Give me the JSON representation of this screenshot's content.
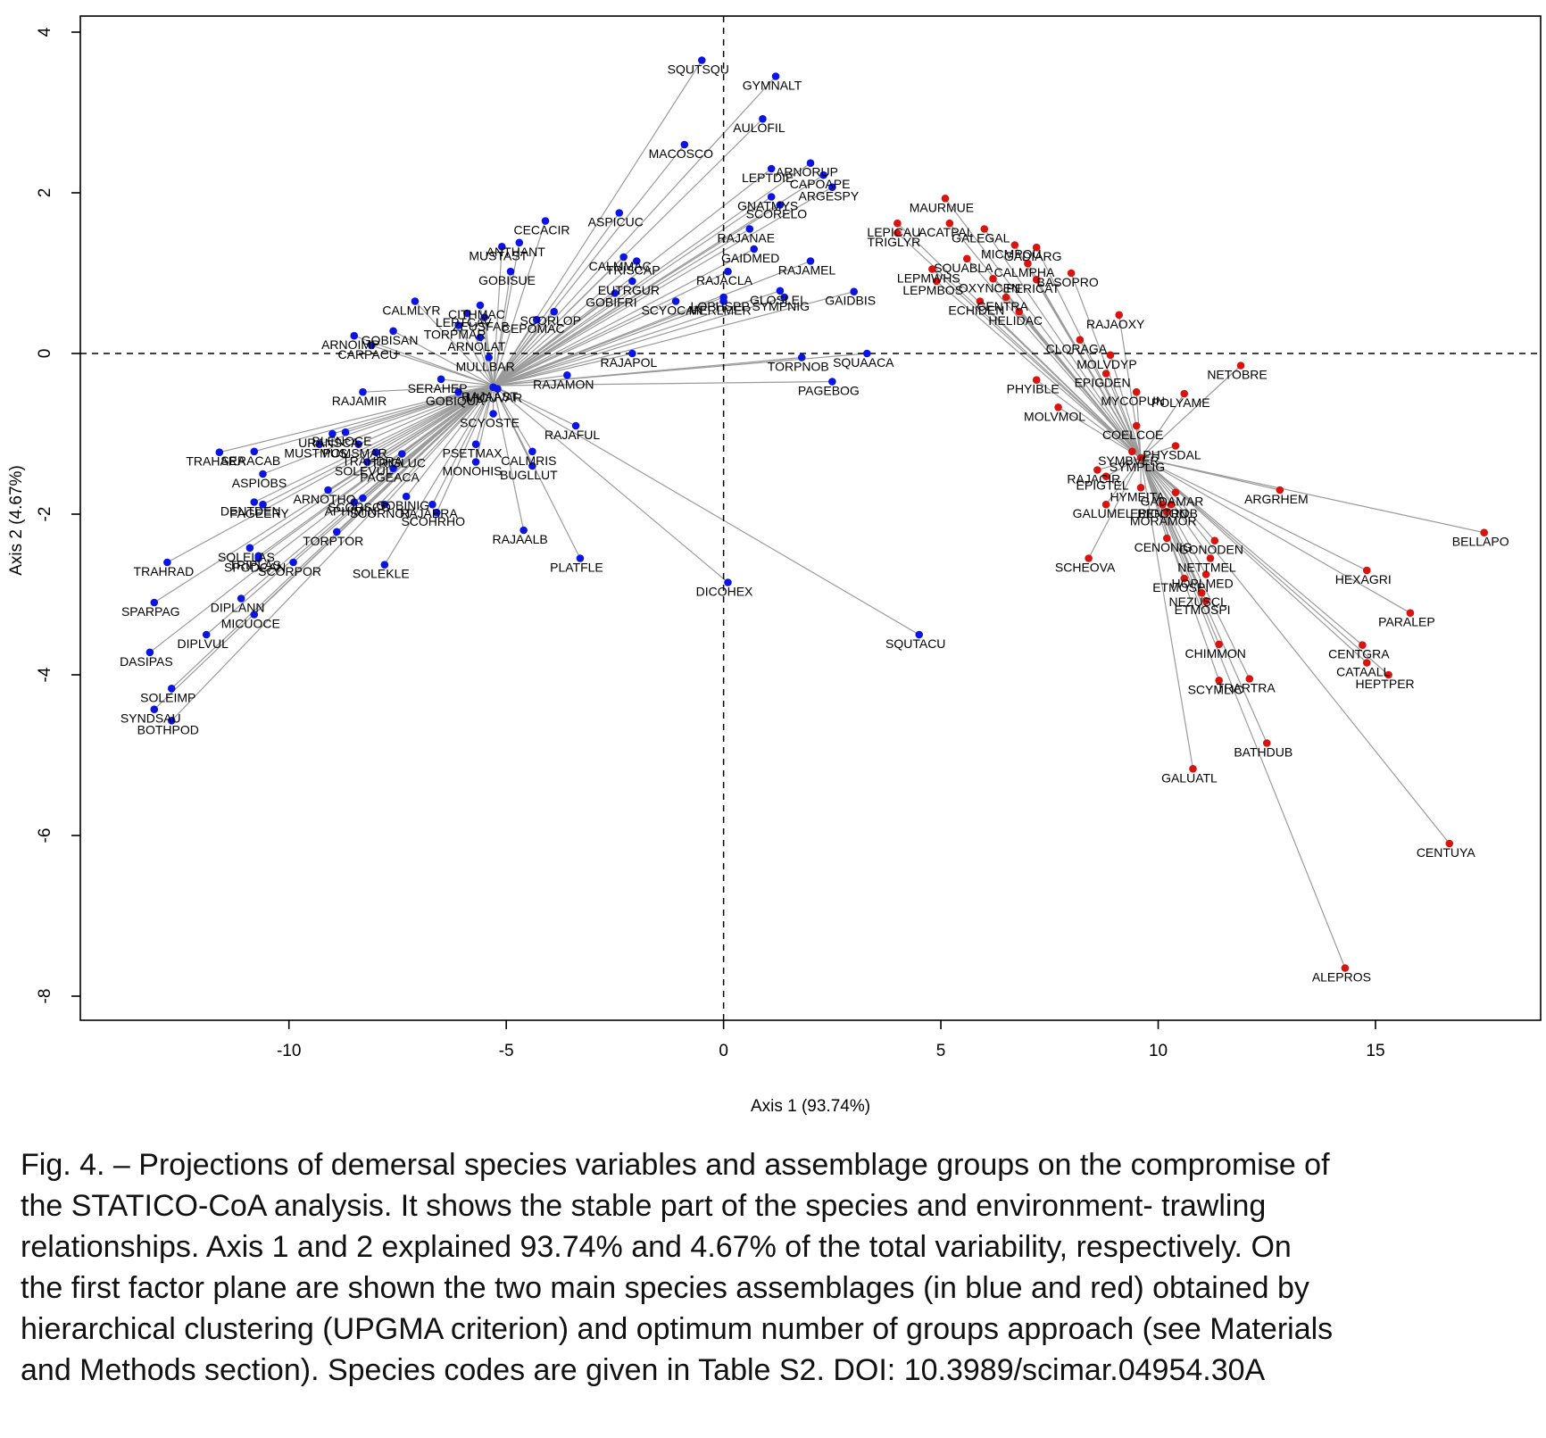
{
  "chart_data": {
    "type": "scatter",
    "xlabel": "Axis 1 (93.74%)",
    "ylabel": "Axis 2 (4.67%)",
    "xlim": [
      -14.8,
      18.8
    ],
    "ylim": [
      -8.3,
      4.2
    ],
    "xticks": [
      -10,
      -5,
      0,
      5,
      10,
      15
    ],
    "yticks": [
      4,
      2,
      0,
      -2,
      -4,
      -6,
      -8
    ],
    "reference_lines": {
      "x": 0,
      "y": 0,
      "style": "dashed"
    },
    "grid": false,
    "colors": {
      "blue": "#0a14e6",
      "red": "#d9140f"
    },
    "centroids": {
      "blue": [
        -5.3,
        -0.4
      ],
      "red": [
        9.6,
        -1.3
      ]
    },
    "series": [
      {
        "color": "blue",
        "points": [
          {
            "label": "SQUTSQU",
            "x": -0.5,
            "y": 3.65
          },
          {
            "label": "GYMNALT",
            "x": 1.2,
            "y": 3.45
          },
          {
            "label": "AULOFIL",
            "x": 0.9,
            "y": 2.92
          },
          {
            "label": "MACOSCO",
            "x": -0.9,
            "y": 2.6
          },
          {
            "label": "LEPTDIE",
            "x": 1.1,
            "y": 2.3
          },
          {
            "label": "ARNORUP",
            "x": 2.0,
            "y": 2.37
          },
          {
            "label": "CAPOAPE",
            "x": 2.3,
            "y": 2.22
          },
          {
            "label": "ARGESPY",
            "x": 2.5,
            "y": 2.07
          },
          {
            "label": "GNATMYS",
            "x": 1.1,
            "y": 1.95
          },
          {
            "label": "SCORELO",
            "x": 1.3,
            "y": 1.85
          },
          {
            "label": "ASPICUC",
            "x": -2.4,
            "y": 1.75
          },
          {
            "label": "CECACIR",
            "x": -4.1,
            "y": 1.65
          },
          {
            "label": "RAJANAE",
            "x": 0.6,
            "y": 1.55
          },
          {
            "label": "GAIDMED",
            "x": 0.7,
            "y": 1.3
          },
          {
            "label": "CALMMAC",
            "x": -2.3,
            "y": 1.2
          },
          {
            "label": "ANTHANT",
            "x": -4.7,
            "y": 1.38
          },
          {
            "label": "MUSTAST",
            "x": -5.1,
            "y": 1.33
          },
          {
            "label": "RAJAMEL",
            "x": 2.0,
            "y": 1.15
          },
          {
            "label": "TRISCAP",
            "x": -2.0,
            "y": 1.15
          },
          {
            "label": "GOBISUE",
            "x": -4.9,
            "y": 1.02
          },
          {
            "label": "RAJACLA",
            "x": 0.1,
            "y": 1.02
          },
          {
            "label": "EUTRGUR",
            "x": -2.1,
            "y": 0.9
          },
          {
            "label": "GLOSLEI",
            "x": 1.3,
            "y": 0.78
          },
          {
            "label": "GAIDBIS",
            "x": 3.0,
            "y": 0.77
          },
          {
            "label": "GOBIFRI",
            "x": -2.5,
            "y": 0.75
          },
          {
            "label": "CALMLYR",
            "x": -7.1,
            "y": 0.65
          },
          {
            "label": "CITHMAC",
            "x": -5.6,
            "y": 0.6
          },
          {
            "label": "SCYOCAN",
            "x": -1.1,
            "y": 0.65
          },
          {
            "label": "MERLMER",
            "x": 0.0,
            "y": 0.65
          },
          {
            "label": "LOPHSPP",
            "x": 0.0,
            "y": 0.7
          },
          {
            "label": "SYMPNIG",
            "x": 1.4,
            "y": 0.7
          },
          {
            "label": "LEPTCAV",
            "x": -5.9,
            "y": 0.5
          },
          {
            "label": "ZEUSFAB",
            "x": -5.5,
            "y": 0.45
          },
          {
            "label": "CEPOMAC",
            "x": -4.3,
            "y": 0.42
          },
          {
            "label": "SCORLOP",
            "x": -3.9,
            "y": 0.52
          },
          {
            "label": "GOBISAN",
            "x": -7.6,
            "y": 0.28
          },
          {
            "label": "ARNOIMP",
            "x": -8.5,
            "y": 0.22
          },
          {
            "label": "TORPMAR",
            "x": -6.1,
            "y": 0.35
          },
          {
            "label": "ARNOLAT",
            "x": -5.6,
            "y": 0.2
          },
          {
            "label": "CARPACU",
            "x": -8.1,
            "y": 0.1
          },
          {
            "label": "MULLBAR",
            "x": -5.4,
            "y": -0.05
          },
          {
            "label": "RAJAPOL",
            "x": -2.1,
            "y": 0.0
          },
          {
            "label": "SQUAACA",
            "x": 3.3,
            "y": 0.0
          },
          {
            "label": "TORPNOB",
            "x": 1.8,
            "y": -0.05
          },
          {
            "label": "SERAHEP",
            "x": -6.5,
            "y": -0.32
          },
          {
            "label": "RAJAAST",
            "x": -5.3,
            "y": -0.42
          },
          {
            "label": "MICUVAR",
            "x": -5.2,
            "y": -0.44
          },
          {
            "label": "RAJAMON",
            "x": -3.6,
            "y": -0.27
          },
          {
            "label": "PAGEBOG",
            "x": 2.5,
            "y": -0.35
          },
          {
            "label": "RAJAMIR",
            "x": -8.3,
            "y": -0.48
          },
          {
            "label": "GOBIQUA",
            "x": -6.1,
            "y": -0.48
          },
          {
            "label": "SCYOSTE",
            "x": -5.3,
            "y": -0.75
          },
          {
            "label": "RAJAFUL",
            "x": -3.4,
            "y": -0.9
          },
          {
            "label": "URANSCA",
            "x": -9.0,
            "y": -1.0
          },
          {
            "label": "BLENOCE",
            "x": -8.7,
            "y": -0.98
          },
          {
            "label": "MUSTMUS",
            "x": -9.3,
            "y": -1.13
          },
          {
            "label": "POMSMAR",
            "x": -8.4,
            "y": -1.13
          },
          {
            "label": "TRAHARA",
            "x": -11.6,
            "y": -1.23
          },
          {
            "label": "TRAHDRA",
            "x": -8.0,
            "y": -1.23
          },
          {
            "label": "SERACAB",
            "x": -10.8,
            "y": -1.22
          },
          {
            "label": "PSETMAX",
            "x": -5.7,
            "y": -1.13
          },
          {
            "label": "CALMRIS",
            "x": -4.4,
            "y": -1.22
          },
          {
            "label": "TRIGLUC",
            "x": -7.4,
            "y": -1.25
          },
          {
            "label": "SOLEVUL",
            "x": -8.2,
            "y": -1.35
          },
          {
            "label": "PAGEACA",
            "x": -7.6,
            "y": -1.43
          },
          {
            "label": "BUGLLUT",
            "x": -4.4,
            "y": -1.4
          },
          {
            "label": "MONOHIS",
            "x": -5.7,
            "y": -1.35
          },
          {
            "label": "ASPIOBS",
            "x": -10.6,
            "y": -1.5
          },
          {
            "label": "ARNOTHO",
            "x": -9.1,
            "y": -1.7
          },
          {
            "label": "SCORSCO",
            "x": -8.3,
            "y": -1.8
          },
          {
            "label": "DENTDEN",
            "x": -10.8,
            "y": -1.85
          },
          {
            "label": "GOBINIG",
            "x": -7.3,
            "y": -1.78
          },
          {
            "label": "PAGEERY",
            "x": -10.6,
            "y": -1.88
          },
          {
            "label": "RAJABRA",
            "x": -6.7,
            "y": -1.88
          },
          {
            "label": "SCORNOT",
            "x": -7.8,
            "y": -1.88
          },
          {
            "label": "APHIMIN",
            "x": -8.5,
            "y": -1.85
          },
          {
            "label": "SCOHRHO",
            "x": -6.6,
            "y": -1.98
          },
          {
            "label": "TORPTOR",
            "x": -8.9,
            "y": -2.22
          },
          {
            "label": "RAJAALB",
            "x": -4.6,
            "y": -2.2
          },
          {
            "label": "TRIPLAS",
            "x": -10.7,
            "y": -2.52
          },
          {
            "label": "SOLELAS",
            "x": -10.9,
            "y": -2.42
          },
          {
            "label": "TRAHRAD",
            "x": -12.8,
            "y": -2.6
          },
          {
            "label": "SPODCAN",
            "x": -10.7,
            "y": -2.55
          },
          {
            "label": "SCORPOR",
            "x": -9.9,
            "y": -2.6
          },
          {
            "label": "SOLEKLE",
            "x": -7.8,
            "y": -2.63
          },
          {
            "label": "PLATFLE",
            "x": -3.3,
            "y": -2.55
          },
          {
            "label": "DICOHEX",
            "x": 0.1,
            "y": -2.85
          },
          {
            "label": "DIPLANN",
            "x": -11.1,
            "y": -3.05
          },
          {
            "label": "SPARPAG",
            "x": -13.1,
            "y": -3.1
          },
          {
            "label": "MICUOCE",
            "x": -10.8,
            "y": -3.25
          },
          {
            "label": "DIPLVUL",
            "x": -11.9,
            "y": -3.5
          },
          {
            "label": "SQUTACU",
            "x": 4.5,
            "y": -3.5
          },
          {
            "label": "DASIPAS",
            "x": -13.2,
            "y": -3.72
          },
          {
            "label": "SOLEIMP",
            "x": -12.7,
            "y": -4.17
          },
          {
            "label": "SYNDSAU",
            "x": -13.1,
            "y": -4.43
          },
          {
            "label": "BOTHPOD",
            "x": -12.7,
            "y": -4.57
          }
        ]
      },
      {
        "color": "red",
        "points": [
          {
            "label": "MAURMUE",
            "x": 5.1,
            "y": 1.93
          },
          {
            "label": "ACATPAL",
            "x": 5.2,
            "y": 1.62
          },
          {
            "label": "LEPICAU",
            "x": 4.0,
            "y": 1.62
          },
          {
            "label": "TRIGLYR",
            "x": 4.0,
            "y": 1.5
          },
          {
            "label": "GALEGAL",
            "x": 6.0,
            "y": 1.55
          },
          {
            "label": "MICMPOU",
            "x": 6.7,
            "y": 1.35
          },
          {
            "label": "GADIARG",
            "x": 7.2,
            "y": 1.32
          },
          {
            "label": "CALMPHA",
            "x": 7.0,
            "y": 1.12
          },
          {
            "label": "SQUABLA",
            "x": 5.6,
            "y": 1.18
          },
          {
            "label": "BASOPRO",
            "x": 8.0,
            "y": 1.0
          },
          {
            "label": "LEPMWHS",
            "x": 4.8,
            "y": 1.05
          },
          {
            "label": "PERICAT",
            "x": 7.2,
            "y": 0.92
          },
          {
            "label": "LEPMBOS",
            "x": 4.9,
            "y": 0.9
          },
          {
            "label": "OXYNCEN",
            "x": 6.2,
            "y": 0.93
          },
          {
            "label": "CENTRA",
            "x": 6.5,
            "y": 0.7
          },
          {
            "label": "ECHIDEN",
            "x": 5.9,
            "y": 0.65
          },
          {
            "label": "HELIDAC",
            "x": 6.8,
            "y": 0.52
          },
          {
            "label": "RAJAOXY",
            "x": 9.1,
            "y": 0.48
          },
          {
            "label": "CLORAGA",
            "x": 8.2,
            "y": 0.17
          },
          {
            "label": "MOLVDYP",
            "x": 8.9,
            "y": -0.02
          },
          {
            "label": "NETOBRE",
            "x": 11.9,
            "y": -0.15
          },
          {
            "label": "POLYAME",
            "x": 10.6,
            "y": -0.5
          },
          {
            "label": "EPIGDEN",
            "x": 8.8,
            "y": -0.25
          },
          {
            "label": "PHYIBLE",
            "x": 7.2,
            "y": -0.33
          },
          {
            "label": "MYCOPUN",
            "x": 9.5,
            "y": -0.48
          },
          {
            "label": "MOLVMOL",
            "x": 7.7,
            "y": -0.67
          },
          {
            "label": "COELCOE",
            "x": 9.5,
            "y": -0.9
          },
          {
            "label": "SYMBVER",
            "x": 9.4,
            "y": -1.22
          },
          {
            "label": "PHYSDAL",
            "x": 10.4,
            "y": -1.15
          },
          {
            "label": "SYMPLIG",
            "x": 9.6,
            "y": -1.3
          },
          {
            "label": "RAJACIR",
            "x": 8.6,
            "y": -1.45
          },
          {
            "label": "EPIGTEL",
            "x": 8.8,
            "y": -1.53
          },
          {
            "label": "ARGRHEM",
            "x": 12.8,
            "y": -1.7
          },
          {
            "label": "HYMEITA",
            "x": 9.6,
            "y": -1.67
          },
          {
            "label": "GADAMAR",
            "x": 10.4,
            "y": -1.73
          },
          {
            "label": "BENTROB",
            "x": 10.3,
            "y": -1.88
          },
          {
            "label": "EPIGCON",
            "x": 10.1,
            "y": -1.88
          },
          {
            "label": "GALUMEL",
            "x": 8.8,
            "y": -1.88
          },
          {
            "label": "BELLAPO",
            "x": 17.5,
            "y": -2.23
          },
          {
            "label": "MORAMOR",
            "x": 10.2,
            "y": -1.97
          },
          {
            "label": "GONODEN",
            "x": 11.3,
            "y": -2.33
          },
          {
            "label": "CENONIG",
            "x": 10.2,
            "y": -2.3
          },
          {
            "label": "SCHEOVA",
            "x": 8.4,
            "y": -2.55
          },
          {
            "label": "NETTMEL",
            "x": 11.2,
            "y": -2.55
          },
          {
            "label": "HOPLMED",
            "x": 11.1,
            "y": -2.75
          },
          {
            "label": "HEXAGRI",
            "x": 14.8,
            "y": -2.7
          },
          {
            "label": "ETMOSPI",
            "x": 10.6,
            "y": -2.8
          },
          {
            "label": "NEZUSCL",
            "x": 11.0,
            "y": -2.98
          },
          {
            "label": "ETMOSPI",
            "x": 11.1,
            "y": -3.08
          },
          {
            "label": "PARALEP",
            "x": 15.8,
            "y": -3.23
          },
          {
            "label": "CHIMMON",
            "x": 11.4,
            "y": -3.62
          },
          {
            "label": "CENTGRA",
            "x": 14.7,
            "y": -3.63
          },
          {
            "label": "CATAALL",
            "x": 14.8,
            "y": -3.85
          },
          {
            "label": "HEPTPER",
            "x": 15.3,
            "y": -4.0
          },
          {
            "label": "TRARTRA",
            "x": 12.1,
            "y": -4.05
          },
          {
            "label": "SCYMLIC",
            "x": 11.4,
            "y": -4.07
          },
          {
            "label": "BATHDUB",
            "x": 12.5,
            "y": -4.85
          },
          {
            "label": "GALUATL",
            "x": 10.8,
            "y": -5.17
          },
          {
            "label": "CENTUYA",
            "x": 16.7,
            "y": -6.1
          },
          {
            "label": "ALEPROS",
            "x": 14.3,
            "y": -7.65
          }
        ]
      }
    ]
  },
  "caption": {
    "lines": [
      "Fig. 4. – Projections of demersal species variables and assemblage groups on the compromise of",
      "the STATICO-CoA analysis.  It shows the stable part of the species and environment- trawling",
      "relationships. Axis 1 and 2 explained 93.74% and 4.67% of the total variability, respectively. On",
      "the first factor plane are shown the two main species assemblages (in blue and red) obtained by",
      "hierarchical clustering (UPGMA criterion) and optimum number of groups approach (see Materials",
      "and Methods section). Species codes are given in Table S2. DOI: 10.3989/scimar.04954.30A"
    ]
  }
}
